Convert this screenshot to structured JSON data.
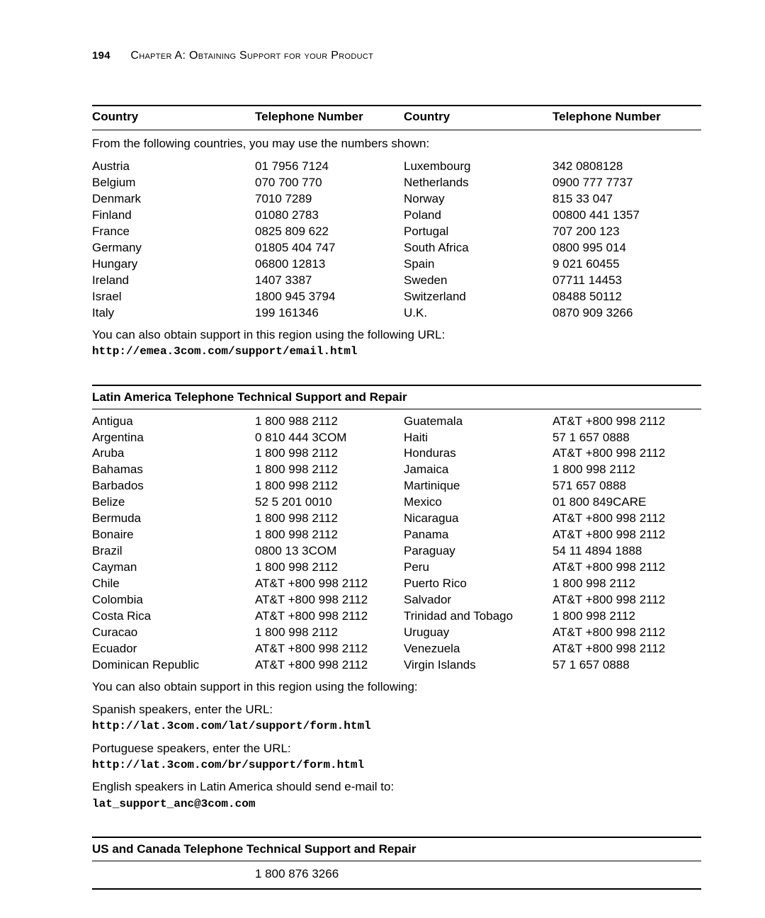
{
  "page": {
    "number": "194",
    "chapter_line_prefix": "C",
    "chapter_line_rest_1": "hapter",
    "chapter_line_letter": " A: O",
    "chapter_line_rest_2": "btaining",
    "chapter_line_word_s": " S",
    "chapter_line_rest_3": "upport for your",
    "chapter_line_word_p": " P",
    "chapter_line_rest_4": "roduct"
  },
  "headers": {
    "country": "Country",
    "telephone": "Telephone Number"
  },
  "sections": {
    "emea": {
      "intro": "From the following countries, you may use the numbers shown:",
      "left": [
        {
          "country": "Austria",
          "phone": "01 7956 7124"
        },
        {
          "country": "Belgium",
          "phone": "070 700 770"
        },
        {
          "country": "Denmark",
          "phone": "7010 7289"
        },
        {
          "country": "Finland",
          "phone": "01080 2783"
        },
        {
          "country": "France",
          "phone": "0825 809 622"
        },
        {
          "country": "Germany",
          "phone": "01805 404 747"
        },
        {
          "country": "Hungary",
          "phone": "06800 12813"
        },
        {
          "country": "Ireland",
          "phone": "1407 3387"
        },
        {
          "country": "Israel",
          "phone": "1800 945 3794"
        },
        {
          "country": "Italy",
          "phone": "199 161346"
        }
      ],
      "right": [
        {
          "country": "Luxembourg",
          "phone": "342 0808128"
        },
        {
          "country": "Netherlands",
          "phone": "0900 777 7737"
        },
        {
          "country": "Norway",
          "phone": "815 33 047"
        },
        {
          "country": "Poland",
          "phone": "00800 441 1357"
        },
        {
          "country": "Portugal",
          "phone": "707 200 123"
        },
        {
          "country": "South Africa",
          "phone": "0800 995 014"
        },
        {
          "country": "Spain",
          "phone": "9 021 60455"
        },
        {
          "country": "Sweden",
          "phone": "07711 14453"
        },
        {
          "country": "Switzerland",
          "phone": "08488 50112"
        },
        {
          "country": "U.K.",
          "phone": "0870 909 3266"
        }
      ],
      "footer1": "You can also obtain support in this region using the following URL:",
      "footer_url": "http://emea.3com.com/support/email.html"
    },
    "latam": {
      "title": "Latin America Telephone Technical Support and Repair",
      "left": [
        {
          "country": "Antigua",
          "phone": "1 800 988 2112"
        },
        {
          "country": "Argentina",
          "phone": "0 810 444 3COM"
        },
        {
          "country": "Aruba",
          "phone": "1 800 998 2112"
        },
        {
          "country": "Bahamas",
          "phone": "1 800 998 2112"
        },
        {
          "country": "Barbados",
          "phone": "1 800 998 2112"
        },
        {
          "country": "Belize",
          "phone": "52 5 201 0010"
        },
        {
          "country": "Bermuda",
          "phone": "1 800 998 2112"
        },
        {
          "country": "Bonaire",
          "phone": "1 800 998 2112"
        },
        {
          "country": "Brazil",
          "phone": "0800 13 3COM"
        },
        {
          "country": "Cayman",
          "phone": "1 800 998 2112"
        },
        {
          "country": "Chile",
          "phone": "AT&T +800 998 2112"
        },
        {
          "country": "Colombia",
          "phone": "AT&T +800 998 2112"
        },
        {
          "country": "Costa Rica",
          "phone": "AT&T +800 998 2112"
        },
        {
          "country": "Curacao",
          "phone": "1 800 998 2112"
        },
        {
          "country": "Ecuador",
          "phone": "AT&T +800 998 2112"
        },
        {
          "country": "Dominican Republic",
          "phone": "AT&T +800 998 2112"
        }
      ],
      "right": [
        {
          "country": "Guatemala",
          "phone": "AT&T +800 998 2112"
        },
        {
          "country": "Haiti",
          "phone": "57 1 657 0888"
        },
        {
          "country": "Honduras",
          "phone": "AT&T +800 998 2112"
        },
        {
          "country": "Jamaica",
          "phone": "1 800 998 2112"
        },
        {
          "country": "Martinique",
          "phone": "571 657 0888"
        },
        {
          "country": "Mexico",
          "phone": "01 800 849CARE"
        },
        {
          "country": "Nicaragua",
          "phone": "AT&T +800 998 2112"
        },
        {
          "country": "Panama",
          "phone": "AT&T +800 998 2112"
        },
        {
          "country": "Paraguay",
          "phone": "54 11 4894 1888"
        },
        {
          "country": "Peru",
          "phone": "AT&T +800 998 2112"
        },
        {
          "country": "Puerto Rico",
          "phone": "1 800 998 2112"
        },
        {
          "country": "Salvador",
          "phone": "AT&T +800 998 2112"
        },
        {
          "country": "Trinidad and Tobago",
          "phone": "1 800 998 2112"
        },
        {
          "country": "Uruguay",
          "phone": "AT&T +800 998 2112"
        },
        {
          "country": "Venezuela",
          "phone": "AT&T +800 998 2112"
        },
        {
          "country": "Virgin Islands",
          "phone": "57 1 657 0888"
        }
      ],
      "footer_intro": "You can also obtain support in this region using the following:",
      "spanish_label": "Spanish speakers, enter the URL:",
      "spanish_url": "http://lat.3com.com/lat/support/form.html",
      "portuguese_label": "Portuguese speakers, enter the URL:",
      "portuguese_url": "http://lat.3com.com/br/support/form.html",
      "english_label": "English speakers in Latin America should send e-mail to:",
      "english_email": "lat_support_anc@3com.com"
    },
    "us": {
      "title": "US and Canada Telephone Technical Support and Repair",
      "phone": "1 800 876 3266"
    }
  }
}
